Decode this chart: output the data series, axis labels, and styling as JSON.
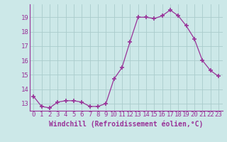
{
  "x": [
    0,
    1,
    2,
    3,
    4,
    5,
    6,
    7,
    8,
    9,
    10,
    11,
    12,
    13,
    14,
    15,
    16,
    17,
    18,
    19,
    20,
    21,
    22,
    23
  ],
  "y": [
    13.5,
    12.8,
    12.7,
    13.1,
    13.2,
    13.2,
    13.1,
    12.8,
    12.8,
    13.0,
    14.7,
    15.5,
    17.3,
    19.0,
    19.0,
    18.9,
    19.1,
    19.5,
    19.1,
    18.4,
    17.5,
    16.0,
    15.3,
    14.9
  ],
  "line_color": "#993399",
  "marker": "+",
  "marker_color": "#993399",
  "bg_color": "#cce8e8",
  "grid_color": "#aacccc",
  "xlabel": "Windchill (Refroidissement éolien,°C)",
  "xlabel_fontsize": 7,
  "ylabel_ticks": [
    13,
    14,
    15,
    16,
    17,
    18,
    19
  ],
  "xtick_labels": [
    "0",
    "1",
    "2",
    "3",
    "4",
    "5",
    "6",
    "7",
    "8",
    "9",
    "10",
    "11",
    "12",
    "13",
    "14",
    "15",
    "16",
    "17",
    "18",
    "19",
    "20",
    "21",
    "22",
    "23"
  ],
  "ylim": [
    12.5,
    19.9
  ],
  "xlim": [
    -0.5,
    23.5
  ],
  "tick_fontsize": 6.5,
  "title": ""
}
